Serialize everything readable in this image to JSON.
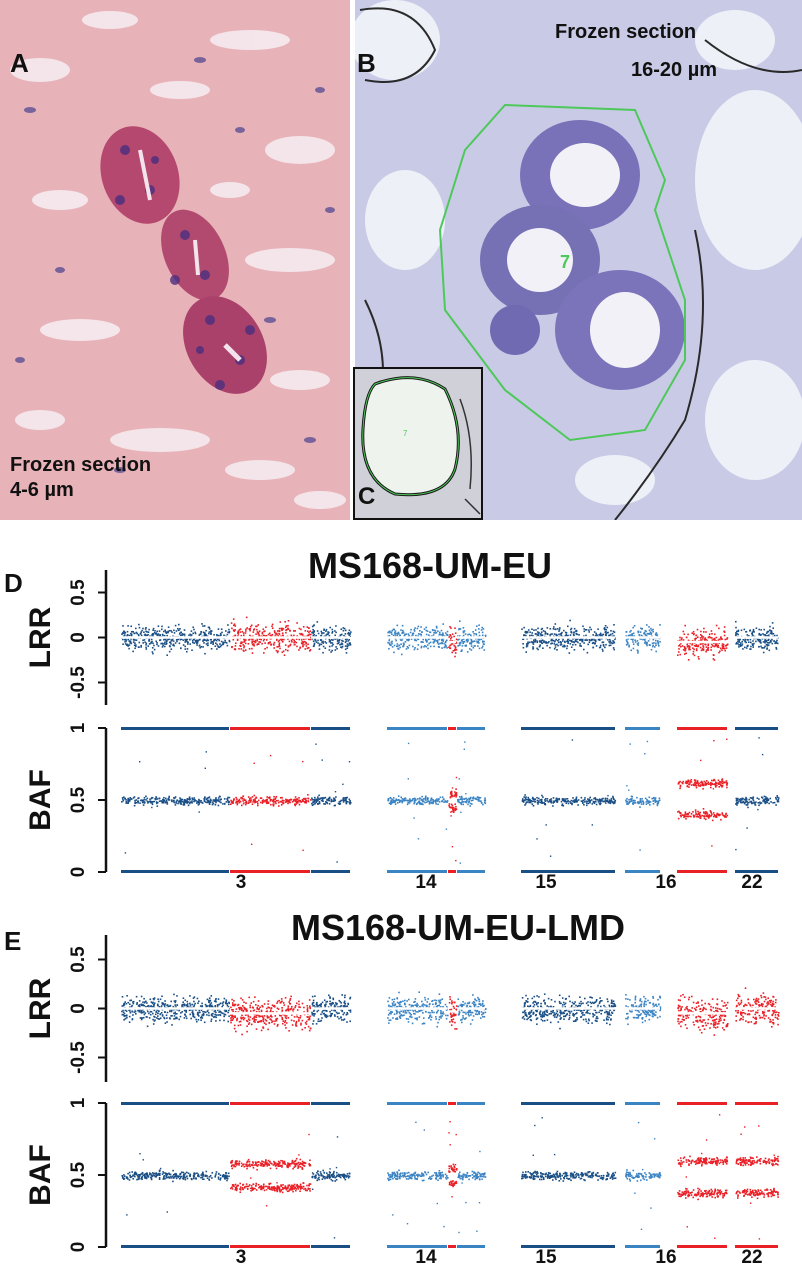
{
  "figure": {
    "panelA": {
      "letter": "A",
      "caption_lines": [
        "Frozen section",
        "4-6 µm"
      ]
    },
    "panelB": {
      "letter": "B",
      "caption_lines": [
        "Frozen section",
        "16-20 µm"
      ],
      "roi_label": "7"
    },
    "panelC": {
      "letter": "C",
      "roi_label": "7"
    }
  },
  "colors": {
    "dark_blue": "#1a4f86",
    "light_blue": "#3b84c4",
    "red": "#ea2027",
    "he_pink": "#e7aeb6",
    "stain_blue": "#8d8fcb",
    "roi_green": "#4ec85a"
  },
  "chart_data": [
    {
      "type": "scatter",
      "panel": "D",
      "title": "MS168-UM-EU",
      "x_tick_labels": [
        "3",
        "14",
        "15",
        "16",
        "22"
      ],
      "lrr": {
        "ylabel": "LRR",
        "ylim": [
          -0.75,
          0.75
        ],
        "yticks": [
          "0.5",
          "0",
          "-0.5"
        ]
      },
      "baf": {
        "ylabel": "BAF",
        "ylim": [
          0,
          1
        ],
        "yticks": [
          "1",
          "0.5",
          "0"
        ]
      },
      "segments": [
        {
          "chr": "3",
          "part": "p",
          "state": "normal",
          "shade": "dark",
          "lrr_median": 0.0,
          "baf_bands": [
            0.5
          ]
        },
        {
          "chr": "3",
          "part": "mid",
          "state": "altered",
          "shade": "red",
          "lrr_median": 0.0,
          "baf_bands": [
            0.5
          ]
        },
        {
          "chr": "3",
          "part": "q",
          "state": "normal",
          "shade": "dark",
          "lrr_median": 0.0,
          "baf_bands": [
            0.5
          ]
        },
        {
          "chr": "14",
          "part": "p",
          "state": "normal",
          "shade": "light",
          "lrr_median": 0.0,
          "baf_bands": [
            0.5
          ]
        },
        {
          "chr": "14",
          "part": "mid",
          "state": "altered",
          "shade": "red",
          "lrr_median": -0.05,
          "baf_bands": [
            0.45,
            0.55
          ]
        },
        {
          "chr": "14",
          "part": "q",
          "state": "normal",
          "shade": "light",
          "lrr_median": 0.0,
          "baf_bands": [
            0.5
          ]
        },
        {
          "chr": "15",
          "part": "all",
          "state": "normal",
          "shade": "dark",
          "lrr_median": 0.0,
          "baf_bands": [
            0.5
          ]
        },
        {
          "chr": "16",
          "part": "p",
          "state": "normal",
          "shade": "light",
          "lrr_median": 0.0,
          "baf_bands": [
            0.5
          ]
        },
        {
          "chr": "16",
          "part": "q",
          "state": "altered",
          "shade": "red",
          "lrr_median": -0.05,
          "baf_bands": [
            0.4,
            0.62
          ]
        },
        {
          "chr": "22",
          "part": "all",
          "state": "normal",
          "shade": "dark",
          "lrr_median": 0.0,
          "baf_bands": [
            0.5
          ]
        }
      ]
    },
    {
      "type": "scatter",
      "panel": "E",
      "title": "MS168-UM-EU-LMD",
      "x_tick_labels": [
        "3",
        "14",
        "15",
        "16",
        "22"
      ],
      "lrr": {
        "ylabel": "LRR",
        "ylim": [
          -0.75,
          0.75
        ],
        "yticks": [
          "0.5",
          "0",
          "-0.5"
        ]
      },
      "baf": {
        "ylabel": "BAF",
        "ylim": [
          0,
          1
        ],
        "yticks": [
          "1",
          "0.5",
          "0"
        ]
      },
      "segments": [
        {
          "chr": "3",
          "part": "p",
          "state": "normal",
          "shade": "dark",
          "lrr_median": 0.0,
          "baf_bands": [
            0.5
          ]
        },
        {
          "chr": "3",
          "part": "mid",
          "state": "altered",
          "shade": "red",
          "lrr_median": -0.05,
          "baf_bands": [
            0.42,
            0.58
          ]
        },
        {
          "chr": "3",
          "part": "q",
          "state": "normal",
          "shade": "dark",
          "lrr_median": 0.0,
          "baf_bands": [
            0.5
          ]
        },
        {
          "chr": "14",
          "part": "p",
          "state": "normal",
          "shade": "light",
          "lrr_median": 0.0,
          "baf_bands": [
            0.5
          ]
        },
        {
          "chr": "14",
          "part": "mid",
          "state": "altered",
          "shade": "red",
          "lrr_median": -0.03,
          "baf_bands": [
            0.45,
            0.55
          ]
        },
        {
          "chr": "14",
          "part": "q",
          "state": "normal",
          "shade": "light",
          "lrr_median": 0.0,
          "baf_bands": [
            0.5
          ]
        },
        {
          "chr": "15",
          "part": "all",
          "state": "normal",
          "shade": "dark",
          "lrr_median": 0.0,
          "baf_bands": [
            0.5
          ]
        },
        {
          "chr": "16",
          "part": "p",
          "state": "normal",
          "shade": "light",
          "lrr_median": 0.0,
          "baf_bands": [
            0.5
          ]
        },
        {
          "chr": "16",
          "part": "q",
          "state": "altered",
          "shade": "red",
          "lrr_median": -0.05,
          "baf_bands": [
            0.38,
            0.6
          ]
        },
        {
          "chr": "22",
          "part": "all",
          "state": "altered",
          "shade": "red",
          "lrr_median": 0.0,
          "baf_bands": [
            0.38,
            0.6
          ]
        }
      ]
    }
  ]
}
